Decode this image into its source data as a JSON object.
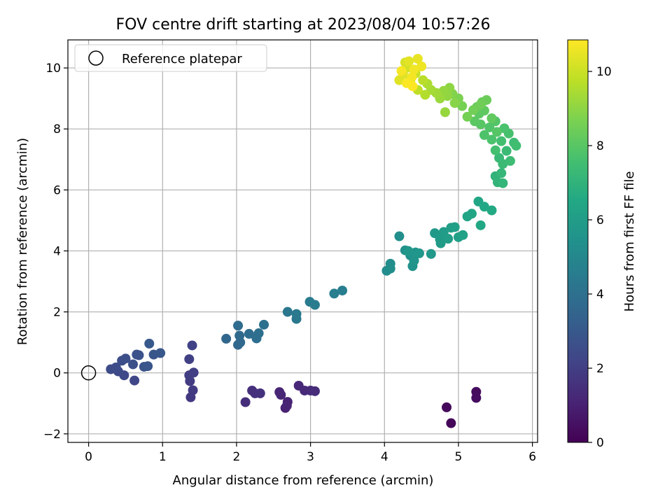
{
  "chart_data": {
    "type": "scatter",
    "title": "FOV centre drift starting at 2023/08/04 10:57:26",
    "xlabel": "Angular distance from reference (arcmin)",
    "ylabel": "Rotation from reference (arcmin)",
    "xlim": [
      -0.28,
      6.07
    ],
    "ylim": [
      -2.28,
      10.92
    ],
    "xticks": [
      0,
      1,
      2,
      3,
      4,
      5,
      6
    ],
    "yticks": [
      -2,
      0,
      2,
      4,
      6,
      8,
      10
    ],
    "grid": true,
    "legend": {
      "position": "top-left",
      "entries": [
        "Reference platepar"
      ]
    },
    "colorbar": {
      "label": "Hours from first FF file",
      "range": [
        0,
        10.85
      ],
      "ticks": [
        0,
        2,
        4,
        6,
        8,
        10
      ],
      "colormap": "viridis"
    },
    "reference_point": {
      "x": 0,
      "y": 0
    },
    "points": [
      [
        4.9,
        -1.65,
        0.2
      ],
      [
        4.84,
        -1.13,
        0.25
      ],
      [
        5.24,
        -0.62,
        0.3
      ],
      [
        5.24,
        -0.82,
        0.35
      ],
      [
        2.66,
        -1.15,
        1.0
      ],
      [
        2.69,
        -0.95,
        1.05
      ],
      [
        2.68,
        -1.08,
        1.1
      ],
      [
        2.58,
        -0.63,
        1.1
      ],
      [
        2.6,
        -0.72,
        1.15
      ],
      [
        2.84,
        -0.42,
        1.2
      ],
      [
        2.92,
        -0.58,
        1.25
      ],
      [
        3.0,
        -0.58,
        1.3
      ],
      [
        3.06,
        -0.6,
        1.35
      ],
      [
        2.12,
        -0.96,
        1.4
      ],
      [
        2.21,
        -0.58,
        1.45
      ],
      [
        2.25,
        -0.67,
        1.5
      ],
      [
        2.32,
        -0.67,
        1.55
      ],
      [
        1.38,
        -0.8,
        1.8
      ],
      [
        1.41,
        -0.57,
        1.85
      ],
      [
        1.37,
        -0.27,
        1.9
      ],
      [
        1.36,
        -0.08,
        1.95
      ],
      [
        1.42,
        0.01,
        2.0
      ],
      [
        1.36,
        0.45,
        2.05
      ],
      [
        1.4,
        0.9,
        2.1
      ],
      [
        0.62,
        -0.25,
        2.3
      ],
      [
        0.48,
        -0.08,
        2.35
      ],
      [
        0.4,
        0.05,
        2.4
      ],
      [
        0.3,
        0.12,
        2.45
      ],
      [
        0.37,
        0.18,
        2.5
      ],
      [
        0.45,
        0.4,
        2.55
      ],
      [
        0.5,
        0.47,
        2.6
      ],
      [
        0.6,
        0.28,
        2.65
      ],
      [
        0.65,
        0.6,
        2.7
      ],
      [
        0.68,
        0.58,
        2.75
      ],
      [
        0.75,
        0.2,
        2.8
      ],
      [
        0.8,
        0.22,
        2.85
      ],
      [
        0.88,
        0.6,
        2.9
      ],
      [
        0.97,
        0.65,
        2.95
      ],
      [
        0.82,
        0.96,
        3.0
      ],
      [
        1.86,
        1.12,
        3.6
      ],
      [
        2.02,
        0.92,
        3.65
      ],
      [
        2.05,
        1.0,
        3.7
      ],
      [
        2.04,
        1.22,
        3.75
      ],
      [
        2.02,
        1.55,
        3.8
      ],
      [
        2.17,
        1.28,
        3.85
      ],
      [
        2.27,
        1.13,
        3.9
      ],
      [
        2.3,
        1.3,
        3.95
      ],
      [
        2.37,
        1.58,
        4.0
      ],
      [
        2.69,
        2.0,
        4.3
      ],
      [
        2.81,
        1.77,
        4.35
      ],
      [
        2.81,
        1.93,
        4.4
      ],
      [
        2.99,
        2.33,
        4.45
      ],
      [
        3.06,
        2.23,
        4.5
      ],
      [
        3.32,
        2.6,
        4.55
      ],
      [
        3.43,
        2.7,
        4.6
      ],
      [
        4.03,
        3.35,
        5.2
      ],
      [
        4.08,
        3.58,
        5.25
      ],
      [
        4.08,
        3.42,
        5.3
      ],
      [
        4.2,
        4.48,
        5.35
      ],
      [
        4.28,
        4.02,
        5.4
      ],
      [
        4.35,
        3.85,
        5.45
      ],
      [
        4.38,
        3.5,
        5.5
      ],
      [
        4.4,
        3.68,
        5.55
      ],
      [
        4.42,
        3.95,
        5.6
      ],
      [
        4.47,
        3.92,
        5.65
      ],
      [
        4.32,
        4.0,
        5.7
      ],
      [
        4.63,
        3.9,
        5.75
      ],
      [
        4.68,
        4.58,
        5.8
      ],
      [
        4.75,
        4.38,
        5.85
      ],
      [
        4.76,
        4.25,
        5.9
      ],
      [
        4.8,
        4.62,
        5.95
      ],
      [
        4.86,
        4.4,
        6.0
      ],
      [
        4.9,
        4.76,
        6.05
      ],
      [
        4.95,
        4.78,
        6.1
      ],
      [
        5.0,
        4.45,
        6.15
      ],
      [
        5.06,
        4.52,
        6.2
      ],
      [
        5.12,
        5.13,
        6.3
      ],
      [
        5.18,
        5.22,
        6.35
      ],
      [
        5.27,
        5.62,
        6.4
      ],
      [
        5.3,
        4.84,
        6.45
      ],
      [
        5.35,
        5.45,
        6.5
      ],
      [
        5.45,
        5.33,
        6.55
      ],
      [
        5.5,
        6.45,
        7.0
      ],
      [
        5.53,
        6.25,
        7.05
      ],
      [
        5.6,
        6.22,
        7.1
      ],
      [
        5.58,
        6.55,
        7.15
      ],
      [
        5.55,
        7.05,
        7.25
      ],
      [
        5.6,
        6.85,
        7.3
      ],
      [
        5.65,
        7.28,
        7.35
      ],
      [
        5.7,
        6.95,
        7.4
      ],
      [
        5.75,
        7.55,
        7.45
      ],
      [
        5.78,
        7.45,
        7.5
      ],
      [
        5.58,
        7.6,
        7.55
      ],
      [
        5.5,
        7.3,
        7.6
      ],
      [
        5.68,
        7.85,
        7.65
      ],
      [
        5.62,
        8.02,
        7.7
      ],
      [
        5.45,
        7.65,
        7.75
      ],
      [
        5.35,
        7.8,
        7.8
      ],
      [
        5.42,
        8.05,
        7.85
      ],
      [
        5.5,
        8.25,
        7.9
      ],
      [
        5.52,
        7.9,
        7.95
      ],
      [
        5.3,
        8.15,
        8.0
      ],
      [
        5.22,
        8.25,
        8.05
      ],
      [
        5.28,
        8.5,
        8.1
      ],
      [
        5.35,
        8.6,
        8.15
      ],
      [
        5.45,
        8.35,
        8.2
      ],
      [
        5.25,
        8.72,
        8.3
      ],
      [
        5.32,
        8.88,
        8.35
      ],
      [
        5.38,
        8.95,
        8.4
      ],
      [
        5.3,
        8.8,
        8.45
      ],
      [
        5.2,
        8.62,
        8.5
      ],
      [
        5.12,
        8.4,
        8.55
      ],
      [
        5.05,
        8.75,
        8.6
      ],
      [
        5.0,
        9.0,
        8.7
      ],
      [
        4.92,
        9.15,
        8.8
      ],
      [
        4.95,
        8.85,
        8.9
      ],
      [
        4.88,
        9.35,
        9.0
      ],
      [
        4.85,
        9.08,
        9.05
      ],
      [
        4.8,
        9.25,
        9.1
      ],
      [
        4.82,
        8.55,
        9.15
      ],
      [
        4.75,
        9.0,
        9.2
      ],
      [
        4.7,
        9.18,
        9.3
      ],
      [
        4.63,
        9.28,
        9.4
      ],
      [
        4.58,
        9.48,
        9.5
      ],
      [
        4.55,
        9.12,
        9.6
      ],
      [
        4.52,
        9.6,
        9.7
      ],
      [
        4.45,
        9.28,
        9.8
      ],
      [
        4.42,
        9.82,
        9.9
      ],
      [
        4.35,
        9.6,
        10.0
      ],
      [
        4.3,
        10.0,
        10.1
      ],
      [
        4.28,
        10.18,
        10.2
      ],
      [
        4.25,
        9.8,
        10.3
      ],
      [
        4.2,
        9.6,
        10.35
      ],
      [
        4.33,
        10.22,
        10.4
      ],
      [
        4.45,
        10.3,
        10.5
      ],
      [
        4.5,
        10.05,
        10.6
      ],
      [
        4.4,
        9.95,
        10.65
      ],
      [
        4.37,
        9.7,
        10.7
      ],
      [
        4.23,
        9.9,
        10.75
      ],
      [
        4.3,
        9.5,
        10.8
      ],
      [
        4.38,
        9.4,
        10.85
      ]
    ]
  }
}
